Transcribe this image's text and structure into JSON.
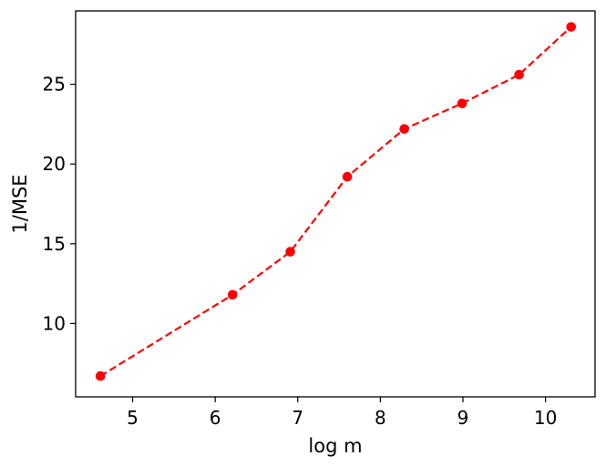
{
  "chart_data": {
    "type": "line",
    "title": "",
    "xlabel": "log m",
    "ylabel": "1/MSE",
    "xlim": [
      4.31,
      10.6
    ],
    "ylim": [
      5.4,
      29.6
    ],
    "xticks": [
      5,
      6,
      7,
      8,
      9,
      10
    ],
    "yticks": [
      10,
      15,
      20,
      25
    ],
    "grid": false,
    "legend": "none",
    "series": [
      {
        "color": "#ff0000",
        "line_style": "dashed",
        "marker": "circle",
        "points": [
          {
            "x": 4.61,
            "y": 6.7
          },
          {
            "x": 6.21,
            "y": 11.8
          },
          {
            "x": 6.91,
            "y": 14.5
          },
          {
            "x": 7.6,
            "y": 19.2
          },
          {
            "x": 8.29,
            "y": 22.2
          },
          {
            "x": 8.99,
            "y": 23.8
          },
          {
            "x": 9.68,
            "y": 25.6
          },
          {
            "x": 10.31,
            "y": 28.6
          }
        ]
      }
    ]
  }
}
